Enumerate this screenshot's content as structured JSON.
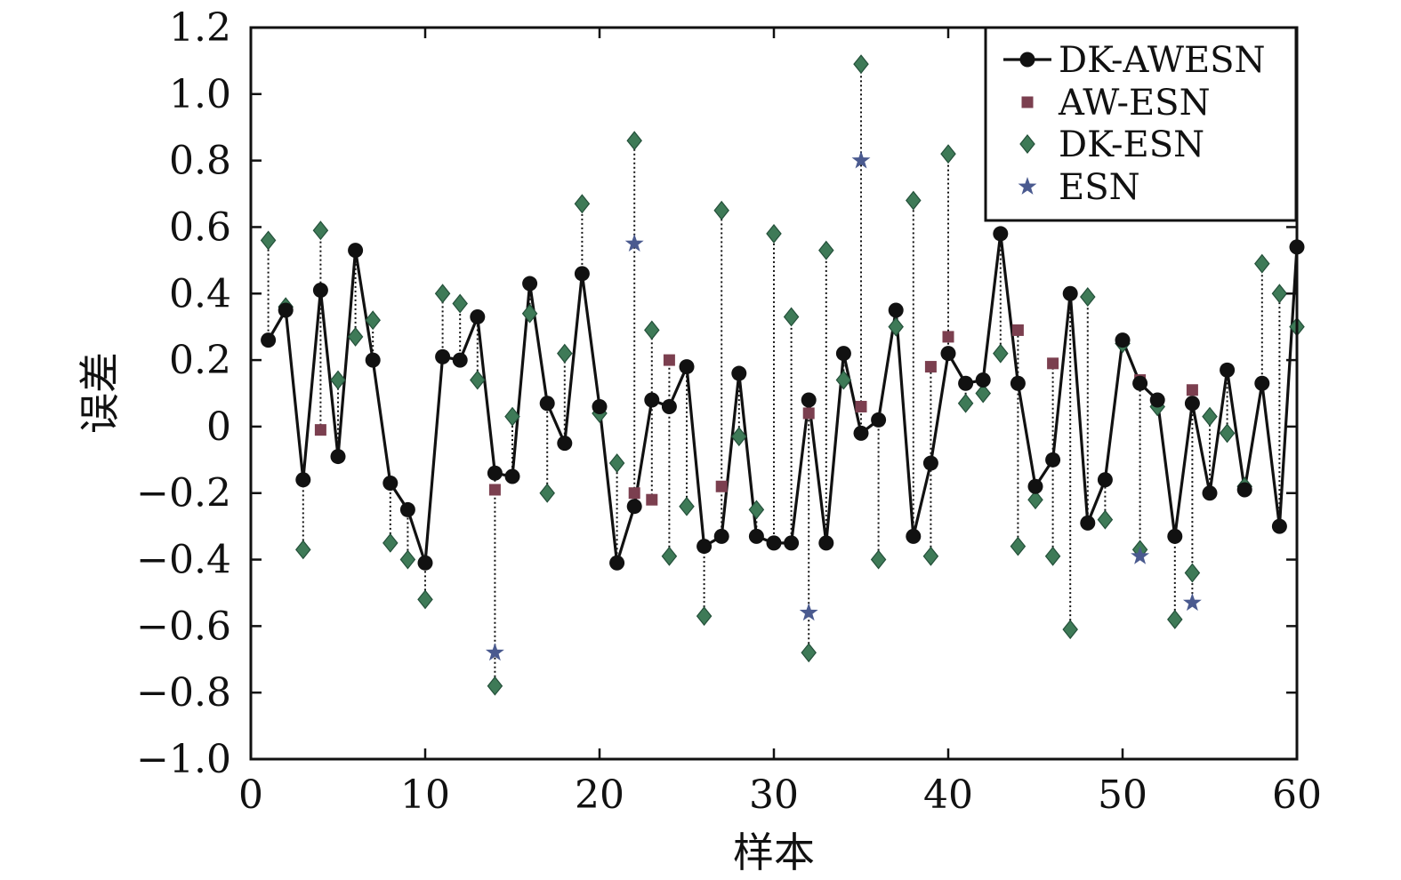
{
  "chart_data": {
    "type": "scatter",
    "title": "",
    "xlabel": "样本",
    "ylabel": "误差",
    "xlim": [
      0,
      60
    ],
    "ylim": [
      -1.0,
      1.2
    ],
    "xticks": [
      "0",
      "10",
      "20",
      "30",
      "40",
      "50",
      "60"
    ],
    "yticks": [
      "−1.0",
      "−0.8",
      "−0.6",
      "−0.4",
      "−0.2",
      "0",
      "0.2",
      "0.4",
      "0.6",
      "0.8",
      "1.0",
      "1.2"
    ],
    "grid": false,
    "legend_position": "top-right",
    "x": [
      1,
      2,
      3,
      4,
      5,
      6,
      7,
      8,
      9,
      10,
      11,
      12,
      13,
      14,
      15,
      16,
      17,
      18,
      19,
      20,
      21,
      22,
      23,
      24,
      25,
      26,
      27,
      28,
      29,
      30,
      31,
      32,
      33,
      34,
      35,
      36,
      37,
      38,
      39,
      40,
      41,
      42,
      43,
      44,
      45,
      46,
      47,
      48,
      49,
      50,
      51,
      52,
      53,
      54,
      55,
      56,
      57,
      58,
      59,
      60
    ],
    "series": [
      {
        "name": "DK-AWESN",
        "marker": "circle",
        "line": "solid",
        "color": "#111111",
        "values": [
          0.26,
          0.35,
          -0.16,
          0.41,
          -0.09,
          0.53,
          0.2,
          -0.17,
          -0.25,
          -0.41,
          0.21,
          0.2,
          0.33,
          -0.14,
          -0.15,
          0.43,
          0.07,
          -0.05,
          0.46,
          0.06,
          -0.41,
          -0.24,
          0.08,
          0.06,
          0.18,
          -0.36,
          -0.33,
          0.16,
          -0.33,
          -0.35,
          -0.35,
          0.08,
          -0.35,
          0.22,
          -0.02,
          0.02,
          0.35,
          -0.33,
          -0.11,
          0.22,
          0.13,
          0.14,
          0.58,
          0.13,
          -0.18,
          -0.1,
          0.4,
          -0.29,
          -0.16,
          0.26,
          0.13,
          0.08,
          -0.33,
          0.07,
          -0.2,
          0.17,
          -0.19,
          0.13,
          -0.3,
          0.54
        ]
      },
      {
        "name": "AW-ESN",
        "marker": "square",
        "color": "#7b3f4f",
        "values": [
          0.26,
          0.35,
          -0.16,
          -0.01,
          -0.09,
          0.53,
          0.2,
          -0.17,
          -0.25,
          -0.41,
          0.21,
          0.2,
          0.33,
          -0.19,
          -0.15,
          0.43,
          0.07,
          -0.05,
          0.46,
          0.06,
          -0.41,
          -0.2,
          -0.22,
          0.2,
          0.18,
          -0.36,
          -0.18,
          0.16,
          -0.33,
          -0.35,
          -0.35,
          0.04,
          -0.35,
          0.22,
          0.06,
          0.02,
          0.35,
          -0.33,
          0.18,
          0.27,
          0.13,
          0.14,
          0.58,
          0.29,
          -0.18,
          0.19,
          0.4,
          -0.29,
          -0.16,
          0.26,
          0.14,
          0.08,
          -0.33,
          0.11,
          -0.2,
          0.17,
          -0.19,
          0.13,
          -0.3,
          0.54
        ]
      },
      {
        "name": "DK-ESN",
        "marker": "diamond",
        "color": "#3e7a57",
        "values": [
          0.56,
          0.36,
          -0.37,
          0.59,
          0.14,
          0.27,
          0.32,
          -0.35,
          -0.4,
          -0.52,
          0.4,
          0.37,
          0.14,
          -0.78,
          0.03,
          0.34,
          -0.2,
          0.22,
          0.67,
          0.04,
          -0.11,
          0.86,
          0.29,
          -0.39,
          -0.24,
          -0.57,
          0.65,
          -0.03,
          -0.25,
          0.58,
          0.33,
          -0.68,
          0.53,
          0.14,
          1.09,
          -0.4,
          0.3,
          0.68,
          -0.39,
          0.82,
          0.07,
          0.1,
          0.22,
          -0.36,
          -0.22,
          -0.39,
          -0.61,
          0.39,
          -0.28,
          0.25,
          -0.37,
          0.06,
          -0.58,
          -0.44,
          0.03,
          -0.02,
          -0.18,
          0.49,
          0.4,
          0.3
        ]
      },
      {
        "name": "ESN",
        "marker": "star",
        "color": "#4a5a8f",
        "values": [
          0.26,
          0.35,
          -0.16,
          0.41,
          -0.09,
          0.53,
          0.2,
          -0.17,
          -0.25,
          -0.41,
          0.21,
          0.2,
          0.33,
          -0.68,
          -0.15,
          0.43,
          0.07,
          -0.05,
          0.46,
          0.06,
          -0.41,
          0.55,
          0.08,
          0.06,
          0.18,
          -0.36,
          -0.33,
          0.16,
          -0.33,
          -0.35,
          -0.35,
          -0.56,
          -0.35,
          0.22,
          0.8,
          0.02,
          0.35,
          -0.33,
          -0.11,
          0.22,
          0.13,
          0.14,
          0.58,
          0.13,
          -0.18,
          -0.1,
          0.4,
          -0.29,
          -0.16,
          0.26,
          -0.39,
          0.08,
          -0.33,
          -0.53,
          -0.2,
          0.17,
          -0.19,
          0.13,
          -0.3,
          0.54
        ]
      }
    ]
  }
}
